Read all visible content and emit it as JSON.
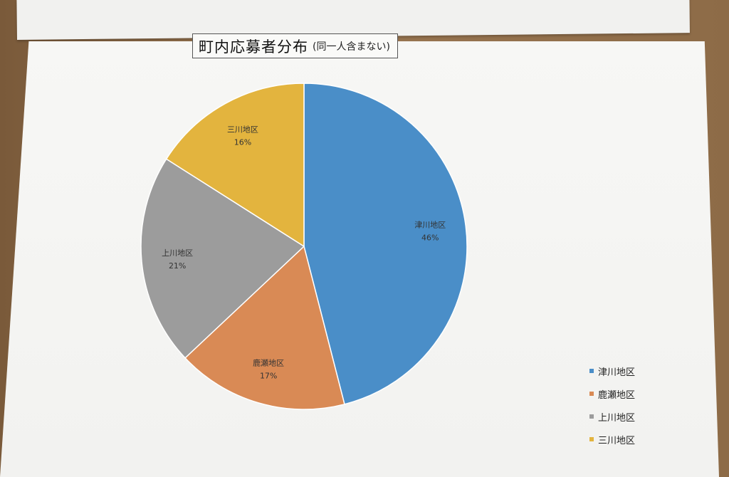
{
  "title": "町内応募者分布",
  "subtitle": "(同一人含まない)",
  "chart_data": {
    "type": "pie",
    "title": "町内応募者分布(同一人含まない)",
    "slices": [
      {
        "label": "津川地区",
        "value": 46,
        "value_label": "46%",
        "color": "#4a8ec8"
      },
      {
        "label": "鹿瀬地区",
        "value": 17,
        "value_label": "17%",
        "color": "#d98a55"
      },
      {
        "label": "上川地区",
        "value": 21,
        "value_label": "21%",
        "color": "#9c9c9c"
      },
      {
        "label": "三川地区",
        "value": 16,
        "value_label": "16%",
        "color": "#e3b43e"
      }
    ],
    "legend_position": "bottom-right"
  }
}
